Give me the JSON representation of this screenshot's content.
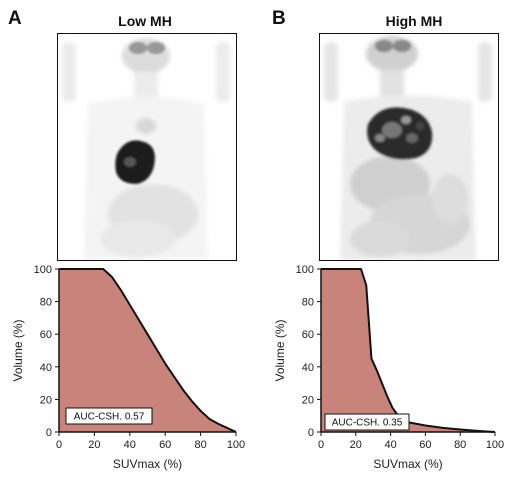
{
  "panels": [
    {
      "letter": "A",
      "title": "Low MH",
      "pet_icon": "pet-scan-image-low-mh"
    },
    {
      "letter": "B",
      "title": "High MH",
      "pet_icon": "pet-scan-image-high-mh"
    }
  ],
  "colors": {
    "fill": "#c8847a",
    "line": "#111111"
  },
  "chart_data": [
    {
      "type": "area",
      "xlabel": "SUVmax (%)",
      "ylabel": "Volume (%)",
      "xlim": [
        0,
        100
      ],
      "ylim": [
        0,
        100
      ],
      "xticks": [
        0,
        20,
        40,
        60,
        80,
        100
      ],
      "yticks": [
        0,
        20,
        40,
        60,
        80,
        100
      ],
      "annotation": "AUC-CSH. 0.57",
      "series": [
        {
          "x": [
            0,
            25,
            30,
            35,
            40,
            45,
            50,
            55,
            60,
            65,
            70,
            75,
            80,
            85,
            90,
            95,
            100
          ],
          "values": [
            100,
            100,
            95,
            87,
            78,
            69,
            60,
            51,
            42,
            34,
            26,
            19,
            13,
            8,
            5,
            2.5,
            0
          ]
        }
      ]
    },
    {
      "type": "area",
      "xlabel": "SUVmax (%)",
      "ylabel": "Volume (%)",
      "xlim": [
        0,
        100
      ],
      "ylim": [
        0,
        100
      ],
      "xticks": [
        0,
        20,
        40,
        60,
        80,
        100
      ],
      "yticks": [
        0,
        20,
        40,
        60,
        80,
        100
      ],
      "annotation": "AUC-CSH. 0.35",
      "series": [
        {
          "x": [
            0,
            23,
            26,
            27,
            28,
            29,
            32,
            35,
            38,
            41,
            45,
            50,
            60,
            70,
            80,
            90,
            100
          ],
          "values": [
            100,
            100,
            90,
            75,
            60,
            45,
            38,
            30,
            22,
            15,
            9,
            6,
            4,
            2.5,
            1.5,
            0.7,
            0
          ]
        }
      ]
    }
  ]
}
